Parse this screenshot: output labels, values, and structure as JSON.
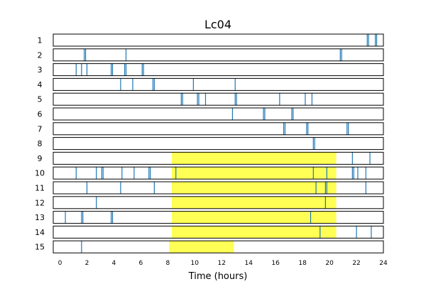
{
  "chart_data": {
    "type": "event-raster",
    "title": "Lc04",
    "xlabel": "Time (hours)",
    "ylabel": "",
    "xlim": [
      -0.5,
      24
    ],
    "xticks": [
      "0",
      "2",
      "4",
      "6",
      "8",
      "10",
      "12",
      "14",
      "16",
      "18",
      "20",
      "22",
      "24"
    ],
    "event_color": "#1f77b4",
    "highlight_color": "#ffff55",
    "rows": [
      {
        "label": "1",
        "highlight": null,
        "events": [
          22.8,
          22.9,
          23.4,
          23.5
        ]
      },
      {
        "label": "2",
        "highlight": null,
        "events": [
          1.8,
          1.9,
          4.9,
          20.8,
          20.9
        ]
      },
      {
        "label": "3",
        "highlight": null,
        "events": [
          1.2,
          1.6,
          2.0,
          3.8,
          3.9,
          4.8,
          4.9,
          6.1,
          6.2
        ]
      },
      {
        "label": "4",
        "highlight": null,
        "events": [
          4.5,
          5.4,
          6.9,
          7.0,
          9.9,
          13.0
        ]
      },
      {
        "label": "5",
        "highlight": null,
        "events": [
          9.0,
          9.1,
          10.2,
          10.3,
          10.8,
          13.0,
          13.1,
          16.3,
          18.2,
          18.7
        ]
      },
      {
        "label": "6",
        "highlight": null,
        "events": [
          12.8,
          15.1,
          15.2,
          17.2,
          17.3
        ]
      },
      {
        "label": "7",
        "highlight": null,
        "events": [
          16.6,
          16.7,
          18.3,
          18.4,
          21.3,
          21.4
        ]
      },
      {
        "label": "8",
        "highlight": null,
        "events": [
          18.8,
          18.9
        ]
      },
      {
        "label": "9",
        "highlight": [
          8.3,
          20.5
        ],
        "events": [
          21.7,
          23.0
        ]
      },
      {
        "label": "10",
        "highlight": [
          8.3,
          20.5
        ],
        "events": [
          1.2,
          2.7,
          3.1,
          3.2,
          4.6,
          5.5,
          6.6,
          6.7,
          8.6,
          18.8,
          19.8,
          21.7,
          21.8,
          22.1,
          22.7
        ]
      },
      {
        "label": "11",
        "highlight": [
          8.3,
          20.5
        ],
        "events": [
          2.0,
          4.5,
          7.0,
          19.0,
          19.7,
          19.8,
          22.7
        ]
      },
      {
        "label": "12",
        "highlight": [
          8.3,
          20.5
        ],
        "events": [
          2.7,
          19.7
        ]
      },
      {
        "label": "13",
        "highlight": [
          8.3,
          20.5
        ],
        "events": [
          0.4,
          1.6,
          1.7,
          3.8,
          3.9,
          18.6
        ]
      },
      {
        "label": "14",
        "highlight": [
          8.3,
          20.5
        ],
        "events": [
          19.3,
          22.0,
          23.1
        ]
      },
      {
        "label": "15",
        "highlight": [
          8.1,
          12.9
        ],
        "events": [
          1.6
        ]
      }
    ]
  }
}
